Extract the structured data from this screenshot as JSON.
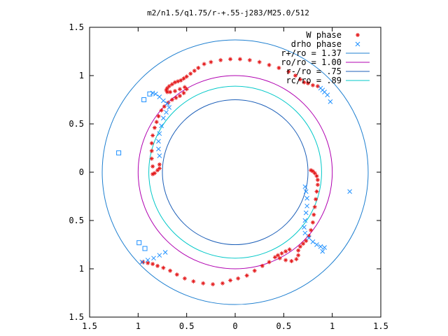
{
  "chart_data": {
    "type": "scatter",
    "title": "m2/n1.5/q1.75/r-+.55-j283/M25.0/512",
    "xlim": [
      -1.5,
      1.5
    ],
    "ylim": [
      -1.5,
      1.5
    ],
    "x_ticks": [
      -1.5,
      -1,
      -0.5,
      0,
      0.5,
      1,
      1.5
    ],
    "y_ticks": [
      -1.5,
      -1,
      -0.5,
      0,
      0.5,
      1,
      1.5
    ],
    "x_tick_labels": [
      "1.5",
      "1",
      "0.5",
      "0",
      "0.5",
      "1",
      "1.5"
    ],
    "y_tick_labels": [
      "1.5",
      "1",
      "0.5",
      "0",
      "0.5",
      "1",
      "1.5"
    ],
    "grid": false,
    "legend_position": "top-right",
    "legend": [
      {
        "label": "W phase",
        "color": "#e41a1c",
        "marker": "plus"
      },
      {
        "label": "drho phase",
        "color": "#1e90ff",
        "marker": "x"
      },
      {
        "label": "r+/ro = 1.37",
        "color": "#1e7fd0",
        "marker": "line"
      },
      {
        "label": "ro/ro = 1.00",
        "color": "#b000b0",
        "marker": "line"
      },
      {
        "label": "r-/ro = .75",
        "color": "#1c5fb8",
        "marker": "line"
      },
      {
        "label": "rc/ro = .89",
        "color": "#00c8c8",
        "marker": "line"
      }
    ],
    "circles": [
      {
        "name": "r+/ro = 1.37",
        "radius": 1.37,
        "color": "#1e7fd0"
      },
      {
        "name": "ro/ro = 1.00",
        "radius": 1.0,
        "color": "#b000b0"
      },
      {
        "name": "r-/ro = .75",
        "radius": 0.75,
        "color": "#1c5fb8"
      },
      {
        "name": "rc/ro = .89",
        "radius": 0.89,
        "color": "#00c8c8"
      }
    ],
    "w_phase": {
      "name": "W phase",
      "color": "#e41a1c",
      "points": [
        [
          -0.15,
          1.16
        ],
        [
          -0.05,
          1.17
        ],
        [
          0.05,
          1.17
        ],
        [
          0.15,
          1.16
        ],
        [
          0.25,
          1.14
        ],
        [
          0.35,
          1.11
        ],
        [
          0.45,
          1.08
        ],
        [
          0.55,
          1.04
        ],
        [
          0.62,
          1.0
        ],
        [
          0.67,
          0.96
        ],
        [
          0.71,
          0.93
        ],
        [
          0.75,
          0.92
        ],
        [
          0.8,
          0.9
        ],
        [
          0.85,
          0.89
        ],
        [
          -0.25,
          1.14
        ],
        [
          -0.32,
          1.12
        ],
        [
          -0.38,
          1.08
        ],
        [
          -0.42,
          1.05
        ],
        [
          -0.46,
          1.02
        ],
        [
          -0.5,
          0.99
        ],
        [
          -0.53,
          0.97
        ],
        [
          -0.56,
          0.95
        ],
        [
          -0.59,
          0.94
        ],
        [
          -0.62,
          0.93
        ],
        [
          -0.65,
          0.91
        ],
        [
          -0.68,
          0.89
        ],
        [
          -0.7,
          0.87
        ],
        [
          -0.71,
          0.85
        ],
        [
          -0.7,
          0.83
        ],
        [
          -0.67,
          0.83
        ],
        [
          -0.62,
          0.84
        ],
        [
          -0.57,
          0.86
        ],
        [
          -0.52,
          0.88
        ],
        [
          -0.5,
          0.86
        ],
        [
          -0.53,
          0.82
        ],
        [
          -0.57,
          0.79
        ],
        [
          -0.61,
          0.77
        ],
        [
          -0.65,
          0.75
        ],
        [
          -0.69,
          0.72
        ],
        [
          -0.73,
          0.68
        ],
        [
          -0.76,
          0.64
        ],
        [
          -0.79,
          0.58
        ],
        [
          -0.81,
          0.52
        ],
        [
          -0.83,
          0.46
        ],
        [
          -0.85,
          0.38
        ],
        [
          -0.86,
          0.3
        ],
        [
          -0.86,
          0.22
        ],
        [
          -0.86,
          0.14
        ],
        [
          -0.85,
          0.06
        ],
        [
          -0.85,
          -0.02
        ],
        [
          -0.83,
          -0.01
        ],
        [
          -0.8,
          0.02
        ],
        [
          -0.78,
          0.04
        ],
        [
          -0.78,
          0.08
        ],
        [
          0.78,
          0.02
        ],
        [
          0.8,
          0.01
        ],
        [
          0.82,
          -0.01
        ],
        [
          0.84,
          -0.04
        ],
        [
          0.85,
          -0.08
        ],
        [
          0.85,
          -0.13
        ],
        [
          0.84,
          -0.2
        ],
        [
          0.83,
          -0.28
        ],
        [
          0.82,
          -0.36
        ],
        [
          0.81,
          -0.44
        ],
        [
          0.8,
          -0.52
        ],
        [
          0.78,
          -0.6
        ],
        [
          0.76,
          -0.66
        ],
        [
          0.73,
          -0.71
        ],
        [
          0.7,
          -0.74
        ],
        [
          0.67,
          -0.77
        ],
        [
          0.65,
          -0.81
        ],
        [
          0.65,
          -0.86
        ],
        [
          0.63,
          -0.9
        ],
        [
          0.58,
          -0.92
        ],
        [
          0.52,
          -0.91
        ],
        [
          0.46,
          -0.89
        ],
        [
          0.41,
          -0.88
        ],
        [
          0.44,
          -0.86
        ],
        [
          0.48,
          -0.84
        ],
        [
          0.52,
          -0.82
        ],
        [
          0.56,
          -0.8
        ],
        [
          0.35,
          -0.93
        ],
        [
          0.28,
          -0.97
        ],
        [
          0.2,
          -1.02
        ],
        [
          0.12,
          -1.07
        ],
        [
          0.03,
          -1.1
        ],
        [
          -0.05,
          -1.12
        ],
        [
          -0.13,
          -1.15
        ],
        [
          -0.23,
          -1.16
        ],
        [
          -0.33,
          -1.15
        ],
        [
          -0.43,
          -1.13
        ],
        [
          -0.52,
          -1.1
        ],
        [
          -0.6,
          -1.06
        ],
        [
          -0.67,
          -1.02
        ],
        [
          -0.74,
          -0.99
        ],
        [
          -0.8,
          -0.97
        ],
        [
          -0.85,
          -0.95
        ],
        [
          -0.9,
          -0.94
        ],
        [
          -0.95,
          -0.93
        ]
      ]
    },
    "drho_phase": {
      "name": "drho phase",
      "color": "#1e90ff",
      "x_points": [
        [
          -0.85,
          0.82
        ],
        [
          -0.82,
          0.81
        ],
        [
          -0.78,
          0.78
        ],
        [
          -0.74,
          0.74
        ],
        [
          -0.7,
          0.71
        ],
        [
          -0.68,
          0.67
        ],
        [
          -0.71,
          0.62
        ],
        [
          -0.74,
          0.56
        ],
        [
          -0.76,
          0.48
        ],
        [
          -0.78,
          0.4
        ],
        [
          -0.79,
          0.32
        ],
        [
          -0.79,
          0.24
        ],
        [
          -0.78,
          0.17
        ],
        [
          0.72,
          -0.15
        ],
        [
          0.73,
          -0.2
        ],
        [
          0.74,
          -0.27
        ],
        [
          0.74,
          -0.35
        ],
        [
          0.73,
          -0.42
        ],
        [
          0.72,
          -0.5
        ],
        [
          0.71,
          -0.57
        ],
        [
          0.72,
          -0.63
        ],
        [
          0.76,
          -0.68
        ],
        [
          0.8,
          -0.72
        ],
        [
          0.84,
          -0.75
        ],
        [
          0.88,
          -0.77
        ],
        [
          0.92,
          -0.78
        ],
        [
          -0.72,
          -0.83
        ],
        [
          -0.78,
          -0.86
        ],
        [
          -0.84,
          -0.89
        ],
        [
          -0.9,
          -0.91
        ],
        [
          -0.96,
          -0.93
        ],
        [
          0.88,
          0.87
        ],
        [
          0.9,
          0.85
        ],
        [
          0.92,
          0.83
        ],
        [
          0.95,
          0.8
        ],
        [
          0.98,
          0.73
        ],
        [
          1.18,
          -0.2
        ],
        [
          0.9,
          -0.82
        ]
      ],
      "square_points": [
        [
          -1.2,
          0.2
        ],
        [
          -0.94,
          0.75
        ],
        [
          -0.88,
          0.81
        ],
        [
          -0.99,
          -0.73
        ],
        [
          -0.93,
          -0.79
        ]
      ]
    }
  }
}
